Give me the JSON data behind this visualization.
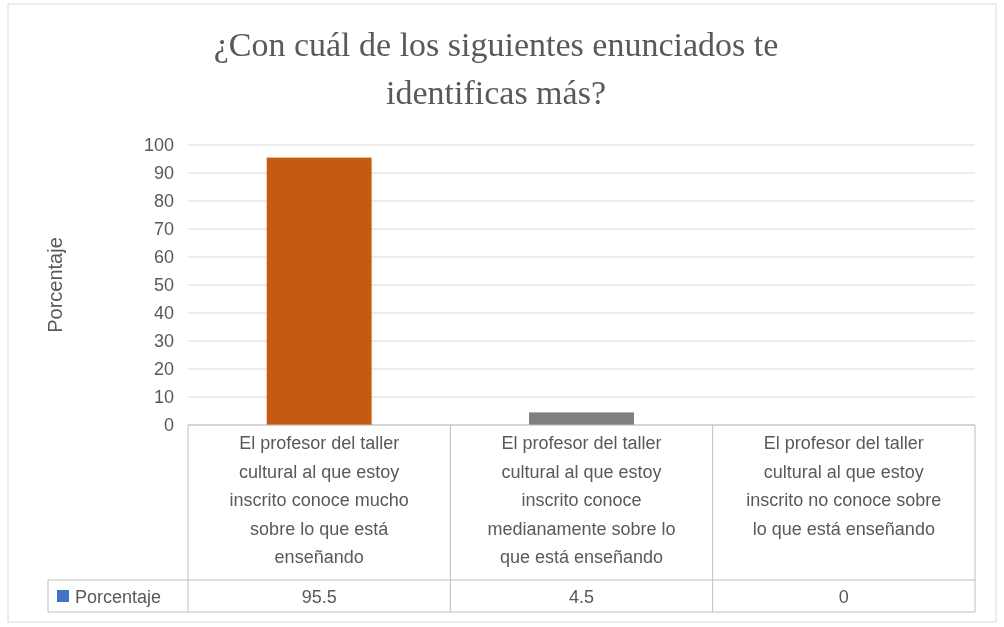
{
  "chart_data": {
    "type": "bar",
    "title": "¿Con cuál de los siguientes enunciados te identificas más?",
    "ylabel": "Porcentaje",
    "categories": [
      "El profesor del taller cultural al que estoy inscrito conoce mucho sobre lo que está enseñando",
      "El profesor del taller cultural al que estoy inscrito conoce medianamente sobre lo que está enseñando",
      "El profesor del taller cultural al que estoy inscrito no conoce sobre lo que está enseñando"
    ],
    "series": [
      {
        "name": "Porcentaje",
        "color": "#4472c4",
        "colors": [
          "#c55a11",
          "#7f7f7f",
          "#4472c4"
        ],
        "values": [
          95.5,
          4.5,
          0
        ]
      }
    ],
    "ylim": [
      0,
      100
    ],
    "yticks": [
      0,
      10,
      20,
      30,
      40,
      50,
      60,
      70,
      80,
      90,
      100
    ],
    "grid": "y",
    "legend": "bottom",
    "data_labels": true
  }
}
